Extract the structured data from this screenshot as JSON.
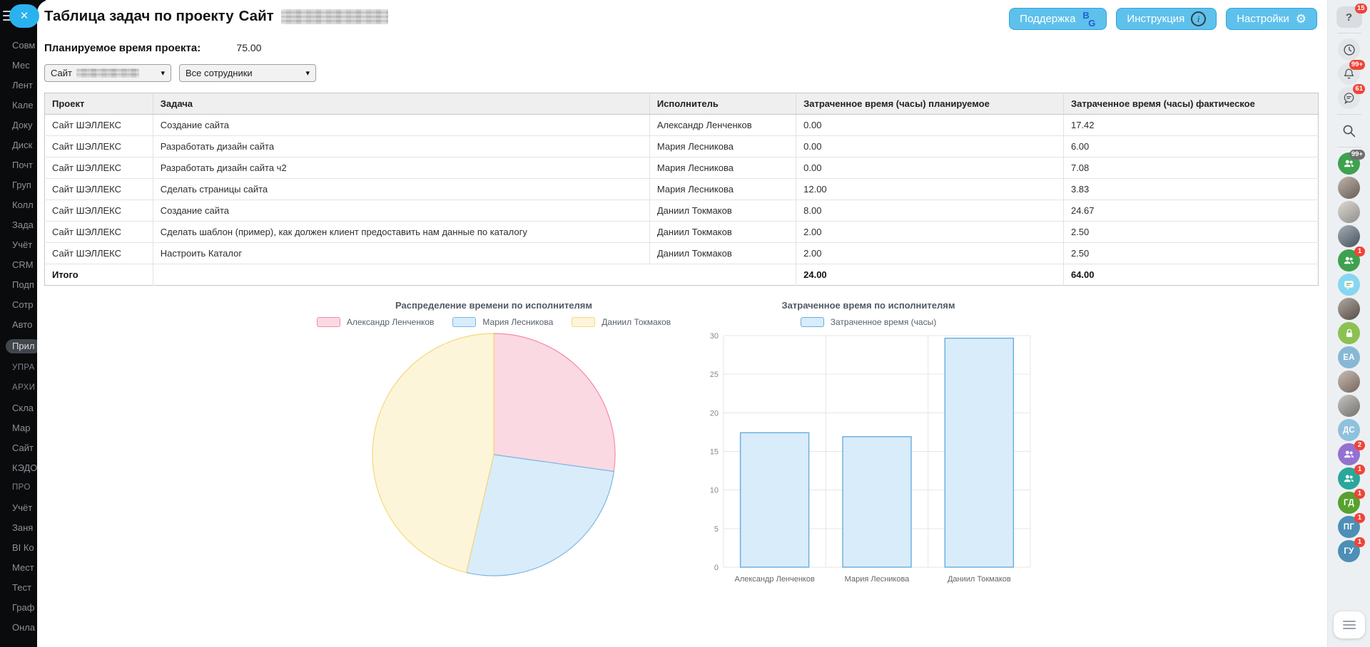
{
  "header": {
    "title": "Таблица задач по проекту",
    "project_prefix": "Сайт",
    "buttons": [
      {
        "name": "support-button",
        "label": "Поддержка",
        "icon": "bg-logo-icon"
      },
      {
        "name": "instruction-button",
        "label": "Инструкция",
        "icon": "info-icon"
      },
      {
        "name": "settings-button",
        "label": "Настройки",
        "icon": "gear-icon"
      }
    ]
  },
  "planned_time": {
    "label": "Планируемое время проекта:",
    "value": "75.00"
  },
  "filters": {
    "project": "Сайт",
    "employees": "Все сотрудники"
  },
  "table": {
    "columns": [
      "Проект",
      "Задача",
      "Исполнитель",
      "Затраченное время (часы) планируемое",
      "Затраченное время (часы) фактическое"
    ],
    "rows": [
      [
        "Сайт ШЭЛЛЕКС",
        "Создание сайта",
        "Александр Ленченков",
        "0.00",
        "17.42"
      ],
      [
        "Сайт ШЭЛЛЕКС",
        "Разработать дизайн сайта",
        "Мария Лесникова",
        "0.00",
        "6.00"
      ],
      [
        "Сайт ШЭЛЛЕКС",
        "Разработать дизайн сайта ч2",
        "Мария Лесникова",
        "0.00",
        "7.08"
      ],
      [
        "Сайт ШЭЛЛЕКС",
        "Сделать страницы сайта",
        "Мария Лесникова",
        "12.00",
        "3.83"
      ],
      [
        "Сайт ШЭЛЛЕКС",
        "Создание сайта",
        "Даниил Токмаков",
        "8.00",
        "24.67"
      ],
      [
        "Сайт ШЭЛЛЕКС",
        "Сделать шаблон (пример), как должен клиент предоставить нам данные по каталогу",
        "Даниил Токмаков",
        "2.00",
        "2.50"
      ],
      [
        "Сайт ШЭЛЛЕКС",
        "Настроить Каталог",
        "Даниил Токмаков",
        "2.00",
        "2.50"
      ]
    ],
    "total": {
      "label": "Итого",
      "planned": "24.00",
      "actual": "64.00"
    }
  },
  "left_sidebar": {
    "items": [
      {
        "label": "Совм"
      },
      {
        "label": "Мес"
      },
      {
        "label": "Лент"
      },
      {
        "label": "Кале"
      },
      {
        "label": "Доку"
      },
      {
        "label": "Диск"
      },
      {
        "label": "Почт"
      },
      {
        "label": "Груп"
      },
      {
        "label": "Колл"
      },
      {
        "label": "Зада"
      },
      {
        "label": "Учёт"
      },
      {
        "label": "CRM"
      },
      {
        "label": "Подп"
      },
      {
        "label": "Сотр"
      },
      {
        "label": "Авто"
      },
      {
        "label": "Прил",
        "active": true
      },
      {
        "label": "УПРА",
        "section": true
      },
      {
        "label": "АРХИ",
        "section": true
      },
      {
        "label": "Скла"
      },
      {
        "label": "Мар"
      },
      {
        "label": "Сайт"
      },
      {
        "label": "КЭДО"
      },
      {
        "label": "ПРО",
        "section": true
      },
      {
        "label": "Учёт"
      },
      {
        "label": "Заня"
      },
      {
        "label": "BI Ко"
      },
      {
        "label": "Мест"
      },
      {
        "label": "Тест"
      },
      {
        "label": "Граф"
      },
      {
        "label": "Онла"
      }
    ]
  },
  "right_sidebar": {
    "items": [
      {
        "type": "help",
        "name": "help-button",
        "icon": "question-icon",
        "badge": "15"
      },
      {
        "type": "divider"
      },
      {
        "type": "round",
        "name": "time-button",
        "icon": "clock-icon",
        "bg": "#e2e5e9"
      },
      {
        "type": "round",
        "name": "notifications-button",
        "icon": "bell-icon",
        "bg": "#e2e5e9",
        "badge": "99+"
      },
      {
        "type": "round",
        "name": "messages-button",
        "icon": "chat-lines-icon",
        "bg": "#e2e5e9",
        "badge": "61"
      },
      {
        "type": "divider"
      },
      {
        "type": "plain",
        "name": "search-button",
        "icon": "search-icon"
      },
      {
        "type": "divider"
      },
      {
        "type": "round",
        "name": "chat-group-item",
        "icon": "people-icon",
        "bg": "#3fa14f",
        "badge": "99+",
        "badge_color": "#6e6e6e"
      },
      {
        "type": "avatar",
        "name": "chat-avatar-item",
        "bg": "#8a7a6d"
      },
      {
        "type": "avatar",
        "name": "chat-avatar-item",
        "bg": "#c0bbb4"
      },
      {
        "type": "avatar",
        "name": "chat-avatar-item",
        "bg": "#5d6d7c"
      },
      {
        "type": "round",
        "name": "chat-group-item",
        "icon": "people-icon",
        "bg": "#3fa14f",
        "badge": "1"
      },
      {
        "type": "round",
        "name": "chat-bot-item",
        "icon": "chat-bubble-icon",
        "bg": "#86d7f2"
      },
      {
        "type": "avatar",
        "name": "chat-avatar-item",
        "bg": "#71655a"
      },
      {
        "type": "round",
        "name": "private-chat-item",
        "icon": "lock-icon",
        "bg": "#8cc152"
      },
      {
        "type": "initials",
        "name": "chat-initials-item",
        "text": "ЕА",
        "bg": "#86b8d4"
      },
      {
        "type": "avatar",
        "name": "chat-avatar-item",
        "bg": "#9d8779"
      },
      {
        "type": "avatar",
        "name": "chat-avatar-item",
        "bg": "#999691"
      },
      {
        "type": "initials",
        "name": "chat-initials-item",
        "text": "ДС",
        "bg": "#8fc1dd"
      },
      {
        "type": "round",
        "name": "chat-group-item",
        "icon": "people-icon",
        "bg": "#9472cf",
        "badge": "2"
      },
      {
        "type": "round",
        "name": "chat-group-item",
        "icon": "people-icon",
        "bg": "#2aa79b",
        "badge": "1"
      },
      {
        "type": "initials",
        "name": "chat-initials-item",
        "text": "ГД",
        "bg": "#57a12e",
        "badge": "1"
      },
      {
        "type": "initials",
        "name": "chat-initials-item",
        "text": "ПГ",
        "bg": "#4d8fb5",
        "badge": "1"
      },
      {
        "type": "initials",
        "name": "chat-initials-item",
        "text": "ГУ",
        "bg": "#4d8fb5",
        "badge": "1"
      },
      {
        "type": "spacer"
      },
      {
        "type": "list",
        "name": "recent-list-button",
        "icon": "list-icon"
      }
    ]
  },
  "chart_data": [
    {
      "type": "pie",
      "title": "Распределение времени по исполнителям",
      "labels": [
        "Александр Ленченков",
        "Мария Лесникова",
        "Даниил Токмаков"
      ],
      "values": [
        17.42,
        16.91,
        29.67
      ],
      "colors": [
        {
          "fill": "#fbd9e2",
          "stroke": "#f48caa"
        },
        {
          "fill": "#d9ecfa",
          "stroke": "#77b9e6"
        },
        {
          "fill": "#fdf5da",
          "stroke": "#f6d878"
        }
      ],
      "legend_position": "top"
    },
    {
      "type": "bar",
      "title": "Затраченное время по исполнителям",
      "categories": [
        "Александр Ленченков",
        "Мария Лесникова",
        "Даниил Токмаков"
      ],
      "series": [
        {
          "name": "Затраченное время (часы)",
          "values": [
            17.42,
            16.91,
            29.67
          ]
        }
      ],
      "ylim": [
        0,
        30
      ],
      "ytick_step": 5,
      "bar_fill": "#d9ecfa",
      "bar_stroke": "#64ade0",
      "grid": true,
      "legend_position": "top"
    }
  ]
}
